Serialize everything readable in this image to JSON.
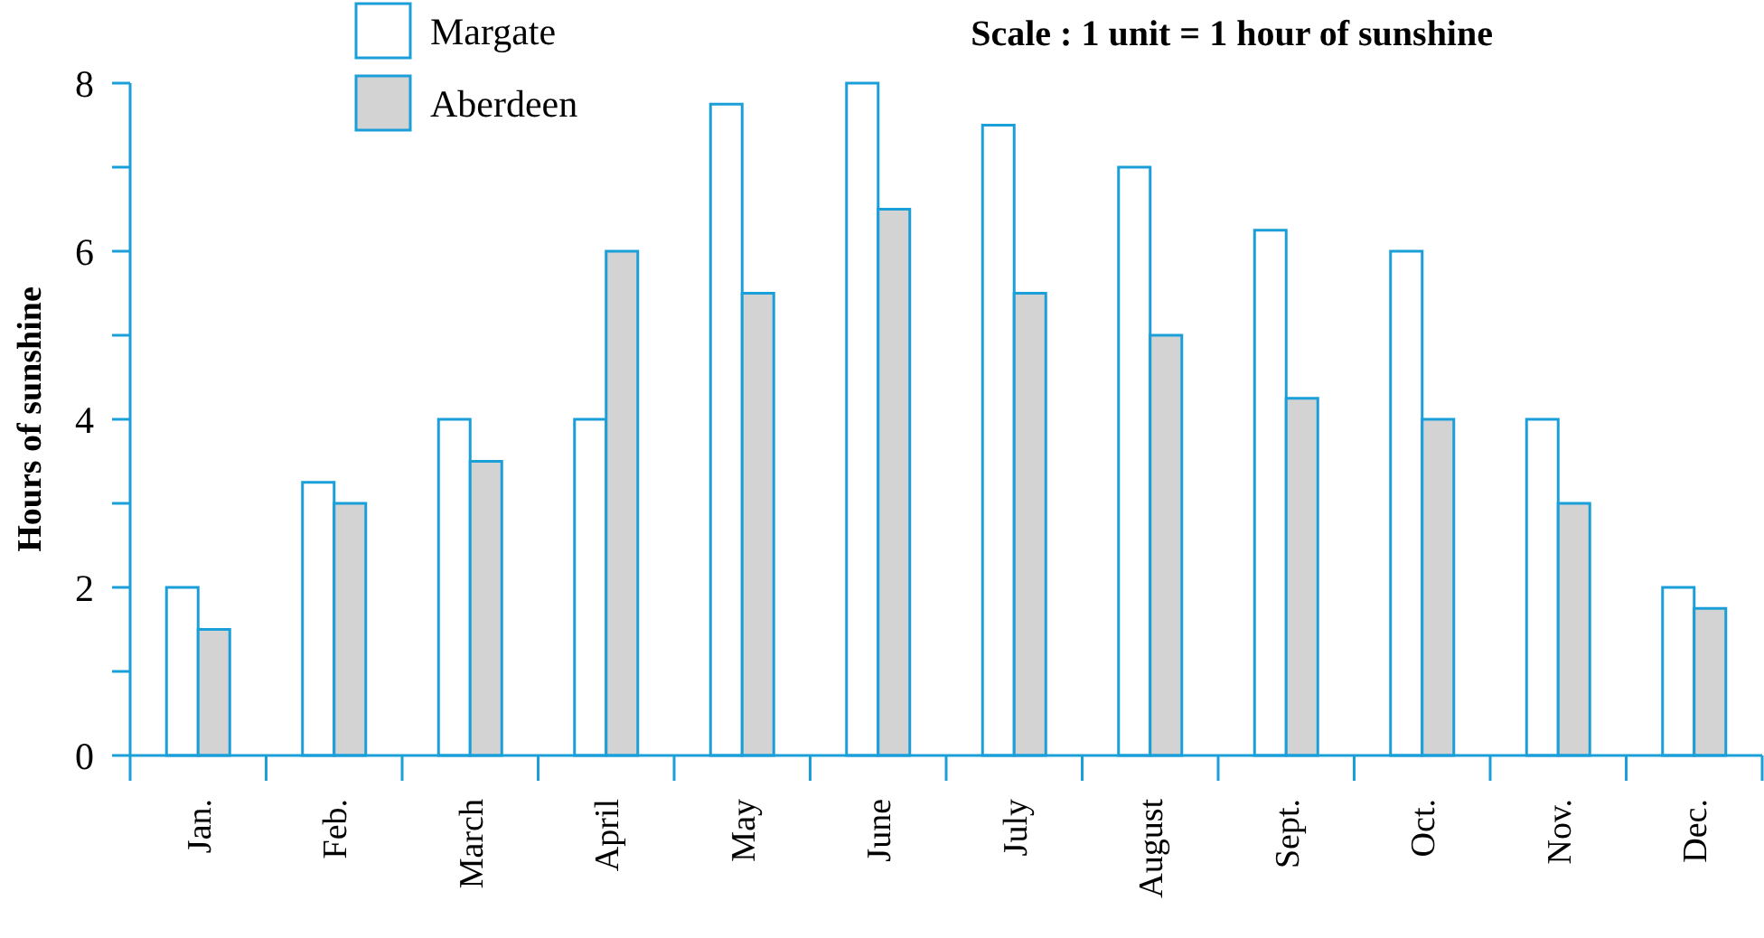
{
  "chart_data": {
    "type": "bar",
    "ylabel": "Hours of sunshine",
    "annotations": [
      "Scale : 1 unit = 1 hour of sunshine"
    ],
    "categories": [
      "Jan.",
      "Feb.",
      "March",
      "April",
      "May",
      "June",
      "July",
      "August",
      "Sept.",
      "Oct.",
      "Nov.",
      "Dec."
    ],
    "series": [
      {
        "name": "Margate",
        "color": "#ffffff",
        "values": [
          2,
          3.25,
          4,
          4,
          7.75,
          8,
          7.5,
          7,
          6.25,
          6,
          4,
          2
        ]
      },
      {
        "name": "Aberdeen",
        "color": "#d3d3d3",
        "values": [
          1.5,
          3,
          3.5,
          6,
          5.5,
          6.5,
          5.5,
          5,
          4.25,
          4,
          3,
          1.75
        ]
      }
    ],
    "ylim": [
      0,
      8
    ],
    "yticks": [
      0,
      {
        "value": 1,
        "label": null
      },
      2,
      {
        "value": 3,
        "label": null
      },
      4,
      {
        "value": 5,
        "label": null
      },
      6,
      {
        "value": 7,
        "label": null
      },
      8
    ],
    "grid": false,
    "legend": "top left"
  }
}
